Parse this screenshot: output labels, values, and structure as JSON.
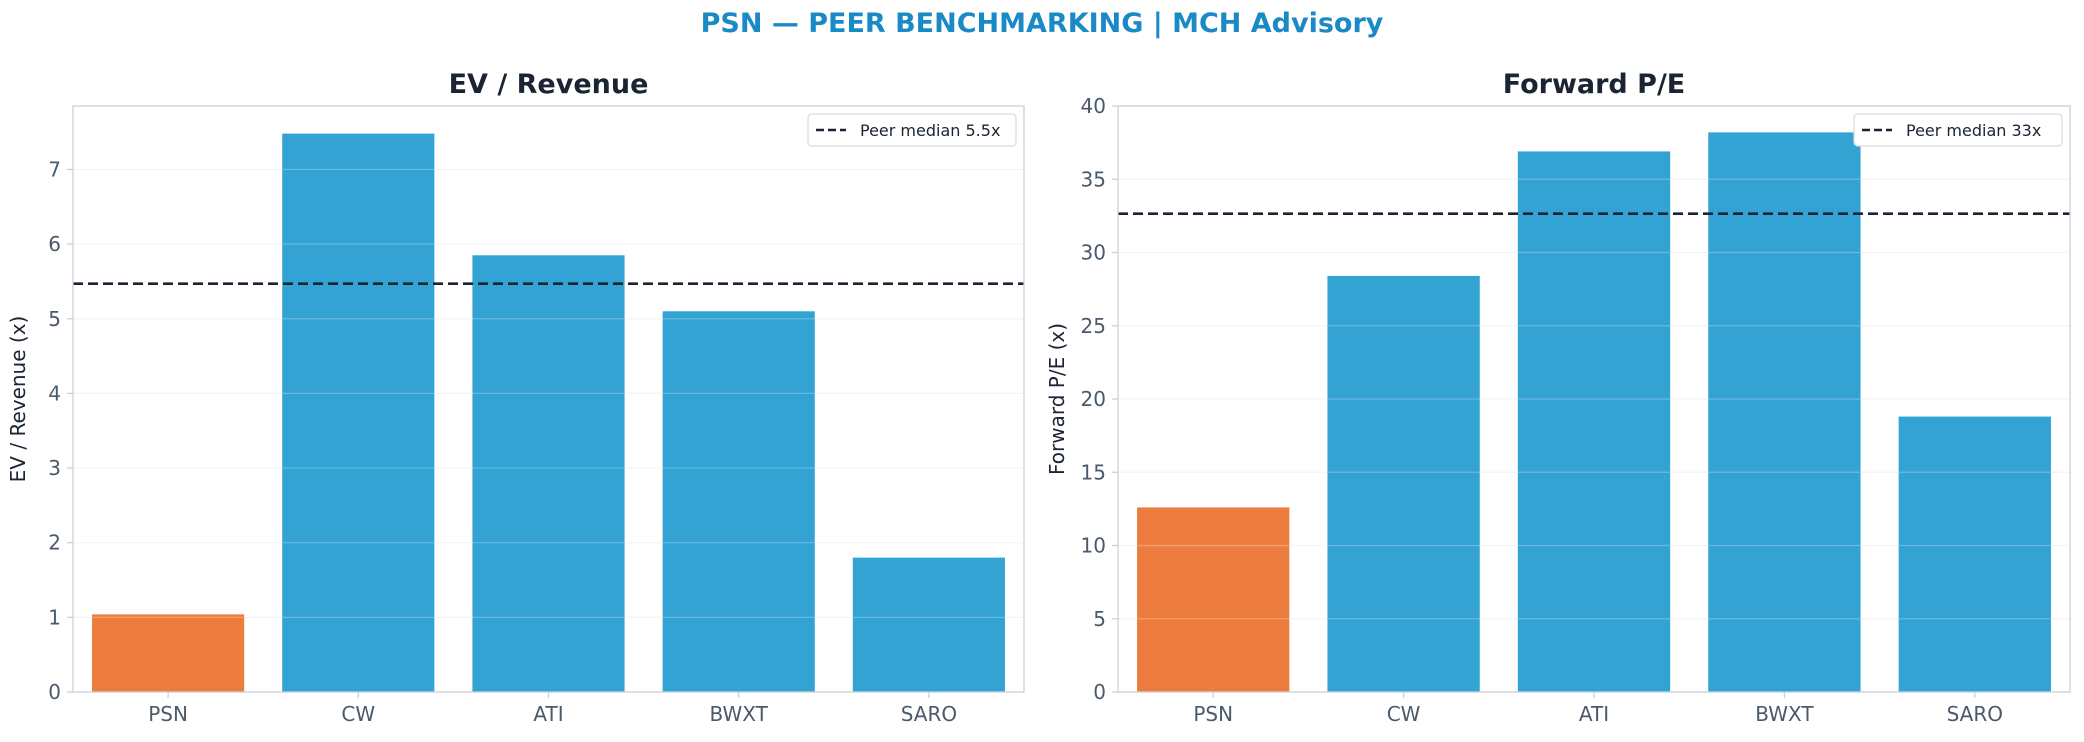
{
  "title": "PSN — PEER BENCHMARKING | MCH Advisory",
  "colors": {
    "title": "#1a8ac6",
    "highlight": "#ed7d3f",
    "peer": "#33a3d4",
    "median_line": "#1a2433",
    "axis": "#c9d1da",
    "grid": "#eef1f4",
    "text": "#1a2433",
    "tick": "#4a5a6b"
  },
  "chart_data": [
    {
      "type": "bar",
      "title": "EV / Revenue",
      "xlabel": "",
      "ylabel": "EV / Revenue (x)",
      "categories": [
        "PSN",
        "CW",
        "ATI",
        "BWXT",
        "SARO"
      ],
      "values": [
        1.04,
        7.48,
        5.85,
        5.1,
        1.8
      ],
      "highlight": "PSN",
      "ylim": [
        0,
        7.85
      ],
      "yticks": [
        0,
        1,
        2,
        3,
        4,
        5,
        6,
        7
      ],
      "reference_line": {
        "value": 5.47,
        "label": "Peer median 5.5x",
        "style": "dashed"
      },
      "legend": "top-right",
      "grid": true
    },
    {
      "type": "bar",
      "title": "Forward P/E",
      "xlabel": "",
      "ylabel": "Forward P/E (x)",
      "categories": [
        "PSN",
        "CW",
        "ATI",
        "BWXT",
        "SARO"
      ],
      "values": [
        12.6,
        28.4,
        36.9,
        38.2,
        18.8
      ],
      "highlight": "PSN",
      "ylim": [
        0,
        40.0
      ],
      "yticks": [
        0,
        5,
        10,
        15,
        20,
        25,
        30,
        35,
        40
      ],
      "reference_line": {
        "value": 32.65,
        "label": "Peer median 33x",
        "style": "dashed"
      },
      "legend": "top-right",
      "grid": true
    }
  ]
}
